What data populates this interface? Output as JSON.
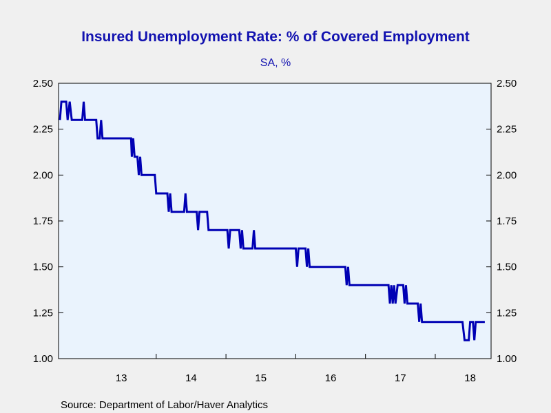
{
  "chart_data": {
    "type": "line",
    "title": "Insured Unemployment Rate: % of Covered Employment",
    "subtitle": "SA, %",
    "source": "Source:  Department of Labor/Haver Analytics",
    "y_ticks": [
      "2.50",
      "2.25",
      "2.00",
      "1.75",
      "1.50",
      "1.25",
      "1.00"
    ],
    "x_ticks": [
      "13",
      "14",
      "15",
      "16",
      "17",
      "18"
    ],
    "ylim": [
      1.0,
      2.5
    ],
    "xlim": [
      2012.6,
      2018.8
    ],
    "grid": false,
    "colors": {
      "line": "#0000b4",
      "text": "#1212b0",
      "plot_bg": "#eaf3fd"
    },
    "series": [
      {
        "points": [
          [
            2012.62,
            2.3
          ],
          [
            2012.64,
            2.4
          ],
          [
            2012.71,
            2.4
          ],
          [
            2012.73,
            2.3
          ],
          [
            2012.76,
            2.4
          ],
          [
            2012.79,
            2.3
          ],
          [
            2012.94,
            2.3
          ],
          [
            2012.96,
            2.4
          ],
          [
            2012.98,
            2.3
          ],
          [
            2013.14,
            2.3
          ],
          [
            2013.16,
            2.2
          ],
          [
            2013.19,
            2.2
          ],
          [
            2013.21,
            2.3
          ],
          [
            2013.23,
            2.2
          ],
          [
            2013.64,
            2.2
          ],
          [
            2013.65,
            2.1
          ],
          [
            2013.67,
            2.2
          ],
          [
            2013.69,
            2.1
          ],
          [
            2013.73,
            2.1
          ],
          [
            2013.75,
            2.0
          ],
          [
            2013.77,
            2.1
          ],
          [
            2013.79,
            2.0
          ],
          [
            2013.98,
            2.0
          ],
          [
            2014.0,
            1.9
          ],
          [
            2014.16,
            1.9
          ],
          [
            2014.18,
            1.8
          ],
          [
            2014.2,
            1.9
          ],
          [
            2014.22,
            1.8
          ],
          [
            2014.4,
            1.8
          ],
          [
            2014.42,
            1.9
          ],
          [
            2014.44,
            1.8
          ],
          [
            2014.58,
            1.8
          ],
          [
            2014.6,
            1.7
          ],
          [
            2014.62,
            1.8
          ],
          [
            2014.73,
            1.8
          ],
          [
            2014.75,
            1.7
          ],
          [
            2015.02,
            1.7
          ],
          [
            2015.04,
            1.6
          ],
          [
            2015.06,
            1.7
          ],
          [
            2015.19,
            1.7
          ],
          [
            2015.21,
            1.6
          ],
          [
            2015.23,
            1.7
          ],
          [
            2015.25,
            1.6
          ],
          [
            2015.38,
            1.6
          ],
          [
            2015.4,
            1.7
          ],
          [
            2015.42,
            1.6
          ],
          [
            2016.0,
            1.6
          ],
          [
            2016.02,
            1.5
          ],
          [
            2016.04,
            1.6
          ],
          [
            2016.14,
            1.6
          ],
          [
            2016.16,
            1.5
          ],
          [
            2016.18,
            1.6
          ],
          [
            2016.2,
            1.5
          ],
          [
            2016.71,
            1.5
          ],
          [
            2016.73,
            1.4
          ],
          [
            2016.75,
            1.5
          ],
          [
            2016.77,
            1.4
          ],
          [
            2017.33,
            1.4
          ],
          [
            2017.35,
            1.3
          ],
          [
            2017.37,
            1.4
          ],
          [
            2017.39,
            1.3
          ],
          [
            2017.41,
            1.4
          ],
          [
            2017.43,
            1.3
          ],
          [
            2017.46,
            1.4
          ],
          [
            2017.54,
            1.4
          ],
          [
            2017.56,
            1.3
          ],
          [
            2017.58,
            1.4
          ],
          [
            2017.6,
            1.3
          ],
          [
            2017.75,
            1.3
          ],
          [
            2017.77,
            1.2
          ],
          [
            2017.79,
            1.3
          ],
          [
            2017.81,
            1.2
          ],
          [
            2018.39,
            1.2
          ],
          [
            2018.42,
            1.1
          ],
          [
            2018.48,
            1.1
          ],
          [
            2018.5,
            1.2
          ],
          [
            2018.54,
            1.2
          ],
          [
            2018.56,
            1.1
          ],
          [
            2018.58,
            1.2
          ],
          [
            2018.71,
            1.2
          ]
        ]
      }
    ]
  }
}
